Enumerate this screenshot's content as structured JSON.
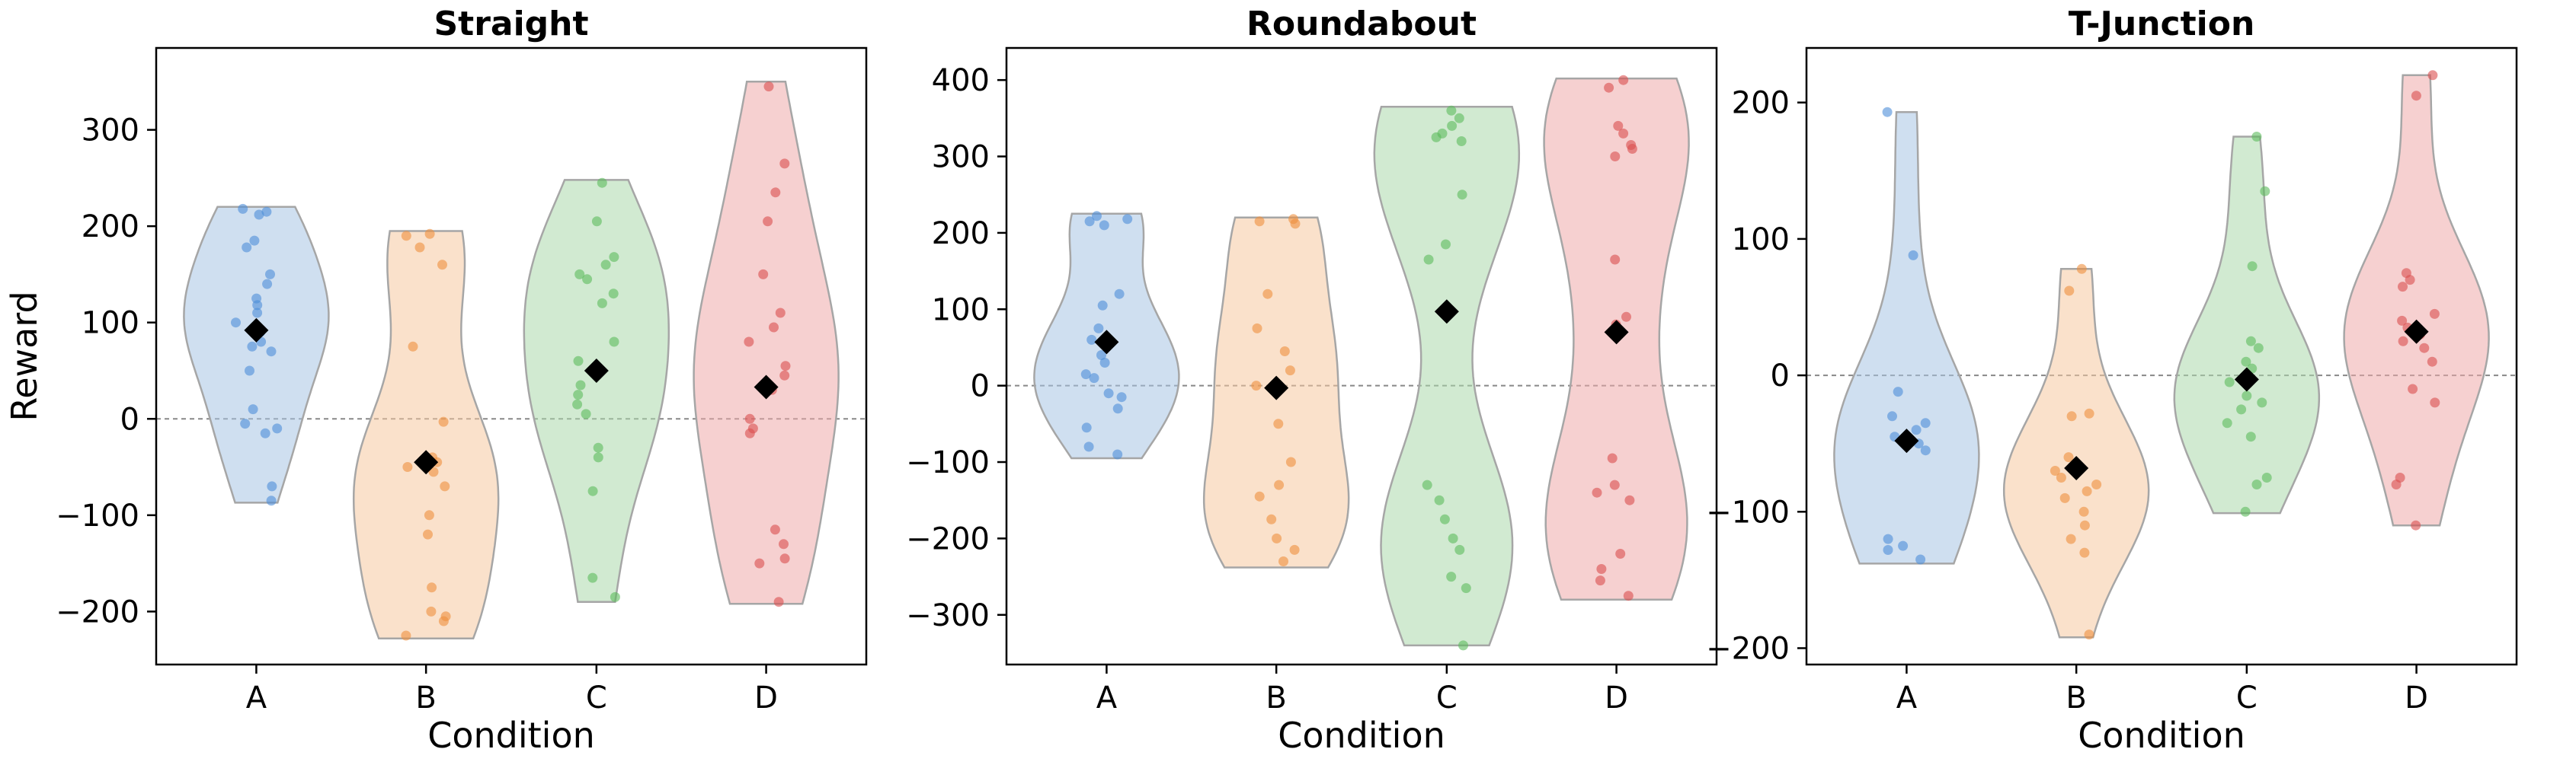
{
  "chart_data": [
    {
      "type": "violin",
      "title": "Straight",
      "xlabel": "Condition",
      "ylabel": "Reward",
      "categories": [
        "A",
        "B",
        "C",
        "D"
      ],
      "ylim": [
        -255,
        385
      ],
      "yticks": [
        -200,
        -100,
        0,
        100,
        200,
        300
      ],
      "reference_line": 0,
      "colors": [
        "#a7c4e4",
        "#f6c9a0",
        "#acd8ac",
        "#eeaaaa"
      ],
      "point_colors": [
        "#4c8ed9",
        "#ef8f3e",
        "#5cba5c",
        "#db4f4f"
      ],
      "series": [
        {
          "category": "A",
          "range": [
            -87,
            220
          ],
          "mean": 92,
          "points": [
            218,
            215,
            212,
            185,
            178,
            150,
            140,
            125,
            118,
            110,
            100,
            90,
            80,
            75,
            70,
            50,
            10,
            -5,
            -10,
            -15,
            -70,
            -85
          ]
        },
        {
          "category": "B",
          "range": [
            -228,
            195
          ],
          "mean": -45,
          "points": [
            192,
            190,
            178,
            160,
            75,
            -3,
            -40,
            -45,
            -50,
            -55,
            -70,
            -100,
            -120,
            -175,
            -200,
            -205,
            -210,
            -225
          ]
        },
        {
          "category": "C",
          "range": [
            -190,
            248
          ],
          "mean": 50,
          "points": [
            245,
            205,
            168,
            160,
            150,
            145,
            130,
            120,
            80,
            60,
            35,
            25,
            15,
            5,
            -30,
            -40,
            -75,
            -165,
            -185
          ]
        },
        {
          "category": "D",
          "range": [
            -192,
            350
          ],
          "mean": 33,
          "points": [
            345,
            265,
            235,
            205,
            150,
            110,
            95,
            80,
            55,
            45,
            30,
            0,
            -10,
            -15,
            -115,
            -130,
            -145,
            -150,
            -190
          ]
        }
      ]
    },
    {
      "type": "violin",
      "title": "Roundabout",
      "xlabel": "Condition",
      "ylabel": "",
      "categories": [
        "A",
        "B",
        "C",
        "D"
      ],
      "ylim": [
        -365,
        442
      ],
      "yticks": [
        -300,
        -200,
        -100,
        0,
        100,
        200,
        300,
        400
      ],
      "reference_line": 0,
      "colors": [
        "#a7c4e4",
        "#f6c9a0",
        "#acd8ac",
        "#eeaaaa"
      ],
      "point_colors": [
        "#4c8ed9",
        "#ef8f3e",
        "#5cba5c",
        "#db4f4f"
      ],
      "series": [
        {
          "category": "A",
          "range": [
            -95,
            225
          ],
          "mean": 57,
          "points": [
            222,
            218,
            215,
            210,
            120,
            105,
            75,
            60,
            40,
            30,
            15,
            10,
            -10,
            -15,
            -30,
            -55,
            -80,
            -90
          ]
        },
        {
          "category": "B",
          "range": [
            -238,
            220
          ],
          "mean": -3,
          "points": [
            218,
            215,
            212,
            120,
            75,
            45,
            20,
            0,
            -50,
            -100,
            -130,
            -145,
            -175,
            -200,
            -215,
            -230
          ]
        },
        {
          "category": "C",
          "range": [
            -340,
            365
          ],
          "mean": 97,
          "points": [
            360,
            350,
            340,
            330,
            325,
            320,
            250,
            185,
            165,
            -130,
            -150,
            -175,
            -200,
            -215,
            -250,
            -265,
            -340
          ]
        },
        {
          "category": "D",
          "range": [
            -280,
            402
          ],
          "mean": 70,
          "points": [
            400,
            390,
            340,
            330,
            315,
            310,
            300,
            165,
            90,
            80,
            -95,
            -130,
            -140,
            -150,
            -220,
            -240,
            -255,
            -275
          ]
        }
      ]
    },
    {
      "type": "violin",
      "title": "T-Junction",
      "xlabel": "Condition",
      "ylabel": "",
      "categories": [
        "A",
        "B",
        "C",
        "D"
      ],
      "ylim": [
        -212,
        240
      ],
      "yticks": [
        -200,
        -100,
        0,
        100,
        200
      ],
      "reference_line": 0,
      "colors": [
        "#a7c4e4",
        "#f6c9a0",
        "#acd8ac",
        "#eeaaaa"
      ],
      "point_colors": [
        "#4c8ed9",
        "#ef8f3e",
        "#5cba5c",
        "#db4f4f"
      ],
      "series": [
        {
          "category": "A",
          "range": [
            -138,
            193
          ],
          "mean": -48,
          "points": [
            193,
            88,
            -12,
            -30,
            -35,
            -40,
            -45,
            -50,
            -55,
            -120,
            -125,
            -128,
            -135
          ]
        },
        {
          "category": "B",
          "range": [
            -192,
            78
          ],
          "mean": -68,
          "points": [
            78,
            62,
            -28,
            -30,
            -60,
            -70,
            -75,
            -80,
            -85,
            -90,
            -100,
            -110,
            -120,
            -130,
            -190
          ]
        },
        {
          "category": "C",
          "range": [
            -101,
            175
          ],
          "mean": -3,
          "points": [
            175,
            135,
            80,
            25,
            20,
            10,
            5,
            -5,
            -15,
            -20,
            -25,
            -35,
            -45,
            -75,
            -80,
            -100
          ]
        },
        {
          "category": "D",
          "range": [
            -110,
            220
          ],
          "mean": 32,
          "points": [
            220,
            205,
            75,
            70,
            65,
            45,
            40,
            35,
            30,
            25,
            20,
            10,
            -10,
            -20,
            -75,
            -80,
            -110
          ]
        }
      ]
    }
  ]
}
